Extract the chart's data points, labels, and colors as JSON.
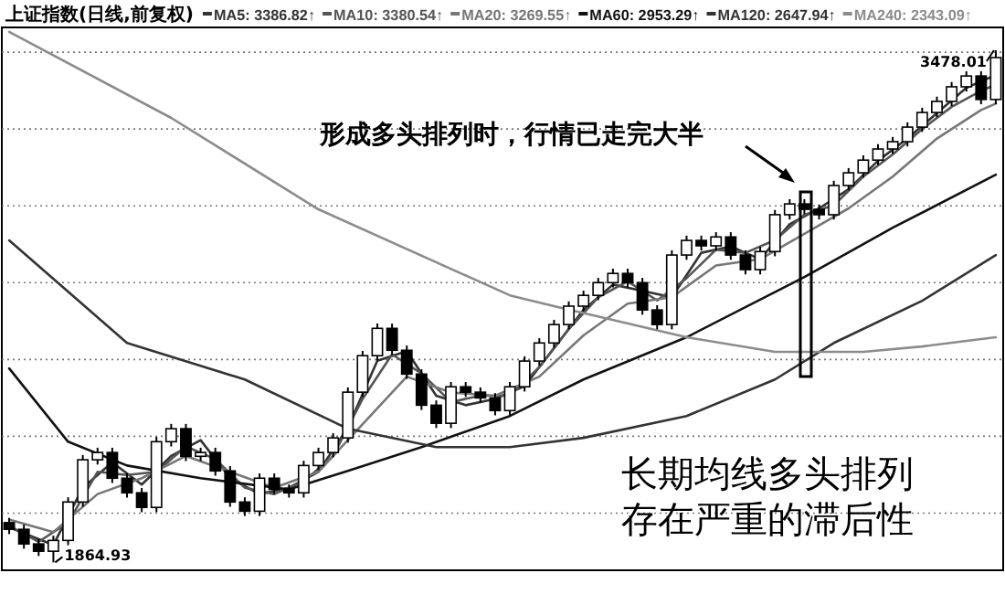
{
  "chart_data": {
    "type": "candlestick",
    "title": "上证指数(日线,前复权)",
    "categories": [
      null,
      null,
      null,
      null,
      null,
      null,
      null,
      null,
      null,
      null,
      null,
      null,
      null,
      null,
      null,
      null,
      null,
      null,
      null,
      null,
      null,
      null,
      null,
      null,
      null,
      null,
      null,
      null,
      null,
      null,
      null,
      null,
      null,
      null,
      null,
      null,
      null,
      null,
      null,
      null,
      null,
      null,
      null,
      null,
      null,
      null,
      null,
      null,
      null,
      null,
      null,
      null,
      null,
      null,
      null,
      null,
      null,
      null,
      null,
      null,
      null,
      null,
      null,
      null,
      null,
      null,
      null,
      null
    ],
    "ohlc": [
      [
        1990,
        2005,
        1954,
        1969
      ],
      [
        1969,
        1984,
        1908,
        1923
      ],
      [
        1923,
        1938,
        1885,
        1900
      ],
      [
        1900,
        1949,
        1864.93,
        1934
      ],
      [
        1934,
        2070,
        1919,
        2055
      ],
      [
        2055,
        2203,
        2040,
        2188
      ],
      [
        2188,
        2226,
        2173,
        2211
      ],
      [
        2211,
        2226,
        2115,
        2130
      ],
      [
        2130,
        2145,
        2069,
        2084
      ],
      [
        2084,
        2099,
        2023,
        2038
      ],
      [
        2038,
        2260,
        2023,
        2245
      ],
      [
        2245,
        2301,
        2230,
        2286
      ],
      [
        2286,
        2301,
        2184,
        2199
      ],
      [
        2199,
        2226,
        2184,
        2211
      ],
      [
        2211,
        2226,
        2138,
        2153
      ],
      [
        2153,
        2168,
        2040,
        2055
      ],
      [
        2055,
        2070,
        2011,
        2026
      ],
      [
        2026,
        2145,
        2011,
        2130
      ],
      [
        2130,
        2145,
        2080,
        2095
      ],
      [
        2095,
        2110,
        2069,
        2084
      ],
      [
        2084,
        2185,
        2069,
        2170
      ],
      [
        2170,
        2226,
        2155,
        2211
      ],
      [
        2211,
        2272,
        2196,
        2257
      ],
      [
        2257,
        2416,
        2242,
        2401
      ],
      [
        2401,
        2531,
        2386,
        2516
      ],
      [
        2516,
        2617,
        2501,
        2602
      ],
      [
        2602,
        2617,
        2518,
        2533
      ],
      [
        2533,
        2548,
        2443,
        2458
      ],
      [
        2458,
        2473,
        2345,
        2360
      ],
      [
        2360,
        2375,
        2288,
        2303
      ],
      [
        2303,
        2433,
        2288,
        2418
      ],
      [
        2418,
        2433,
        2386,
        2401
      ],
      [
        2401,
        2416,
        2368,
        2383
      ],
      [
        2383,
        2398,
        2328,
        2343
      ],
      [
        2343,
        2433,
        2328,
        2418
      ],
      [
        2418,
        2514,
        2403,
        2499
      ],
      [
        2499,
        2571,
        2484,
        2556
      ],
      [
        2556,
        2629,
        2541,
        2614
      ],
      [
        2614,
        2687,
        2599,
        2672
      ],
      [
        2672,
        2721,
        2657,
        2706
      ],
      [
        2706,
        2761,
        2691,
        2746
      ],
      [
        2746,
        2790,
        2731,
        2775
      ],
      [
        2775,
        2790,
        2731,
        2746
      ],
      [
        2746,
        2761,
        2645,
        2660
      ],
      [
        2660,
        2675,
        2599,
        2614
      ],
      [
        2614,
        2848,
        2599,
        2833
      ],
      [
        2833,
        2894,
        2818,
        2879
      ],
      [
        2879,
        2894,
        2847,
        2862
      ],
      [
        2862,
        2905,
        2847,
        2890
      ],
      [
        2890,
        2905,
        2818,
        2833
      ],
      [
        2833,
        2848,
        2772,
        2787
      ],
      [
        2787,
        2859,
        2772,
        2844
      ],
      [
        2844,
        2975,
        2829,
        2960
      ],
      [
        2960,
        3009,
        2945,
        2994
      ],
      [
        2994,
        3009,
        2962,
        2977
      ],
      [
        2977,
        2992,
        2945,
        2960
      ],
      [
        2960,
        3067,
        2945,
        3052
      ],
      [
        3052,
        3107,
        3037,
        3092
      ],
      [
        3092,
        3147,
        3077,
        3132
      ],
      [
        3132,
        3182,
        3117,
        3167
      ],
      [
        3167,
        3205,
        3152,
        3190
      ],
      [
        3190,
        3251,
        3175,
        3236
      ],
      [
        3236,
        3297,
        3221,
        3282
      ],
      [
        3282,
        3332,
        3267,
        3317
      ],
      [
        3317,
        3378,
        3302,
        3363
      ],
      [
        3363,
        3412,
        3348,
        3397
      ],
      [
        3397,
        3412,
        3308,
        3323
      ],
      [
        3323,
        3478.01,
        3308,
        3455
      ]
    ],
    "series": [
      {
        "name": "MA5: 3386.82↑",
        "type": "line",
        "color": "#333333",
        "values": [
          1975,
          null,
          null,
          1920,
          null,
          2100,
          null,
          2180,
          null,
          2110,
          null,
          2200,
          null,
          2250,
          null,
          2130,
          null,
          2080,
          null,
          2100,
          null,
          2150,
          null,
          2290,
          null,
          2500,
          null,
          2530,
          null,
          2390,
          null,
          2360,
          null,
          2380,
          null,
          2420,
          null,
          2540,
          null,
          2660,
          null,
          2740,
          null,
          2720,
          null,
          2700,
          null,
          2840,
          null,
          2860,
          null,
          2820,
          null,
          2930,
          null,
          2980,
          null,
          3040,
          null,
          3130,
          null,
          3200,
          null,
          3280,
          null,
          3360,
          null,
          3400
        ]
      },
      {
        "name": "MA10: 3380.54↑",
        "type": "line",
        "color": "#555555",
        "values": [
          1980,
          null,
          1930,
          null,
          1990,
          null,
          2150,
          null,
          2140,
          null,
          2150,
          null,
          2230,
          null,
          2190,
          null,
          2100,
          null,
          2080,
          null,
          2120,
          null,
          2200,
          null,
          2380,
          null,
          2520,
          null,
          2460,
          null,
          2370,
          null,
          2390,
          null,
          2390,
          null,
          2480,
          null,
          2600,
          null,
          2700,
          null,
          2750,
          null,
          2690,
          null,
          2760,
          null,
          2850,
          null,
          2840,
          null,
          2880,
          null,
          2960,
          null,
          2990,
          null,
          3080,
          null,
          3150,
          null,
          3230,
          null,
          3300,
          null,
          3350,
          3370
        ]
      },
      {
        "name": "MA20: 3269.55↑",
        "type": "line",
        "color": "#777777",
        "values": [
          2000,
          null,
          null,
          1960,
          null,
          null,
          2080,
          null,
          null,
          2130,
          null,
          null,
          2200,
          null,
          null,
          2150,
          null,
          null,
          2100,
          null,
          null,
          2150,
          null,
          null,
          2300,
          null,
          null,
          2450,
          null,
          null,
          2400,
          null,
          null,
          2390,
          null,
          null,
          2450,
          null,
          null,
          2580,
          null,
          null,
          2680,
          null,
          null,
          2700,
          null,
          null,
          2800,
          null,
          null,
          2820,
          null,
          null,
          2900,
          null,
          null,
          2980,
          null,
          null,
          3080,
          null,
          null,
          3200,
          null,
          null,
          3290,
          3310
        ]
      },
      {
        "name": "MA60: 2953.29↑",
        "type": "line",
        "color": "#111111",
        "values": [
          2476,
          null,
          null,
          null,
          2245,
          null,
          null,
          null,
          2170,
          null,
          null,
          null,
          null,
          2130,
          null,
          null,
          null,
          null,
          null,
          2095,
          null,
          null,
          null,
          2153,
          null,
          null,
          null,
          null,
          2228,
          null,
          null,
          null,
          null,
          null,
          2326,
          null,
          null,
          null,
          null,
          2441,
          null,
          null,
          null,
          null,
          null,
          null,
          2574,
          null,
          null,
          null,
          null,
          null,
          null,
          null,
          2764,
          null,
          null,
          null,
          null,
          null,
          2919,
          null,
          null,
          null,
          null,
          null,
          null,
          3086
        ]
      },
      {
        "name": "MA120: 2647.94↑",
        "type": "line",
        "color": "#333333",
        "values": [
          2879,
          null,
          null,
          null,
          null,
          null,
          null,
          null,
          2556,
          null,
          null,
          null,
          null,
          null,
          null,
          null,
          2441,
          null,
          null,
          null,
          null,
          null,
          null,
          2286,
          null,
          null,
          null,
          null,
          null,
          2228,
          null,
          null,
          null,
          null,
          2228,
          null,
          null,
          null,
          null,
          2257,
          null,
          null,
          null,
          null,
          null,
          null,
          2326,
          null,
          null,
          null,
          null,
          null,
          2441,
          null,
          null,
          null,
          2556,
          null,
          null,
          null,
          null,
          null,
          2689,
          null,
          null,
          null,
          null,
          2833
        ]
      },
      {
        "name": "MA240: 2343.09↑",
        "type": "line",
        "color": "#8c8c8c",
        "values": [
          3536,
          null,
          null,
          null,
          null,
          null,
          null,
          null,
          null,
          null,
          null,
          3265,
          null,
          null,
          null,
          null,
          null,
          null,
          null,
          null,
          null,
          2977,
          null,
          null,
          null,
          null,
          null,
          null,
          null,
          null,
          null,
          null,
          null,
          null,
          2706,
          null,
          null,
          2672,
          null,
          null,
          null,
          null,
          null,
          null,
          null,
          null,
          2574,
          null,
          null,
          null,
          null,
          null,
          2528,
          null,
          null,
          null,
          null,
          null,
          2528,
          null,
          null,
          null,
          2545,
          null,
          null,
          null,
          null,
          2574
        ]
      }
    ],
    "ylim": [
      1840,
      3550
    ],
    "yticks": [
      {
        "value": 2020,
        "label": null
      },
      {
        "value": 2262,
        "label": null
      },
      {
        "value": 2504,
        "label": null
      },
      {
        "value": 2746,
        "label": null
      },
      {
        "value": 2988,
        "label": null
      },
      {
        "value": 3230,
        "label": null
      },
      {
        "value": 3472,
        "label": null
      }
    ],
    "grid": "y",
    "legend": "top",
    "annotations": [
      "形成多头排列时，行情已走完大半",
      "长期均线多头排列",
      "存在严重的滞后性",
      "3478.01",
      "1864.93"
    ]
  }
}
